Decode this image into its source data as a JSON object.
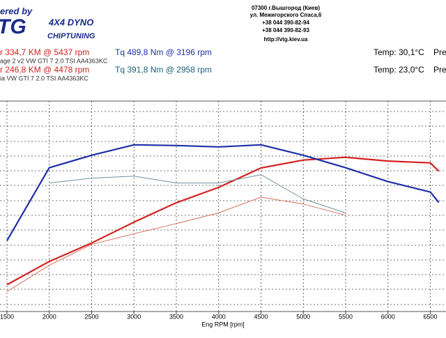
{
  "header": {
    "brand_prefix": "ered by",
    "logo": "TG",
    "dyno": "4X4 DYNO",
    "chiptuning": "CHIPTUNING",
    "address": [
      "07300 г.Вышгород (Киев)",
      "ул. Межигорского Спаса,6",
      "+38 044 390-82-94",
      "+38 044 390-82-93",
      "http://vtg.kiev.ua"
    ]
  },
  "legend": {
    "power1": "r 334,7 KM @ 5437 rpm",
    "torque1": "Tq 489,8 Nm @ 3196 rpm",
    "temp1": "Temp: 30,1°C",
    "pre1": "Pre",
    "car1": "age 2 v2 VW GTI 7 2.0 TSI AA4363KC",
    "power2": "r 246,8 KM @ 4478 rpm",
    "torque2": "Tq 391,8 Nm @ 2958 rpm",
    "temp2": "Temp: 23,0°C",
    "pre2": "Pre",
    "car2": "ia VW GTI 7 2.0 TSI AA4363KC"
  },
  "chart_data": {
    "type": "line",
    "x_label": "Eng RPM [rpm]",
    "x": [
      1500,
      2000,
      2500,
      3000,
      3500,
      4000,
      4500,
      5000,
      5500,
      6000,
      6500,
      6600
    ],
    "xlim": [
      1418,
      6685
    ],
    "xticks": [
      1500,
      2000,
      2500,
      3000,
      3500,
      4000,
      4500,
      5000,
      5500,
      6000,
      6500
    ],
    "ylim": [
      0,
      450
    ],
    "y2lim": [
      0,
      600
    ],
    "grid": true,
    "series": [
      {
        "color": "#d42020",
        "width": 2.2,
        "values": [
          58,
          108,
          148,
          193,
          235,
          268,
          310,
          327,
          333,
          325,
          321,
          303
        ]
      },
      {
        "color": "#d87060",
        "width": 1,
        "values": [
          43,
          100,
          145,
          168,
          190,
          213,
          247,
          232,
          208,
          null,
          null,
          null
        ]
      },
      {
        "color": "#1c2fa8",
        "width": 2.2,
        "axis": "y2",
        "values": [
          204,
          414,
          450,
          480,
          478,
          474,
          480,
          450,
          414,
          374,
          344,
          314
        ]
      },
      {
        "color": "#6f8f9a",
        "width": 1,
        "axis": "y2",
        "values": [
          null,
          370,
          384,
          390,
          370,
          370,
          394,
          324,
          284,
          null,
          null,
          null
        ]
      }
    ]
  }
}
